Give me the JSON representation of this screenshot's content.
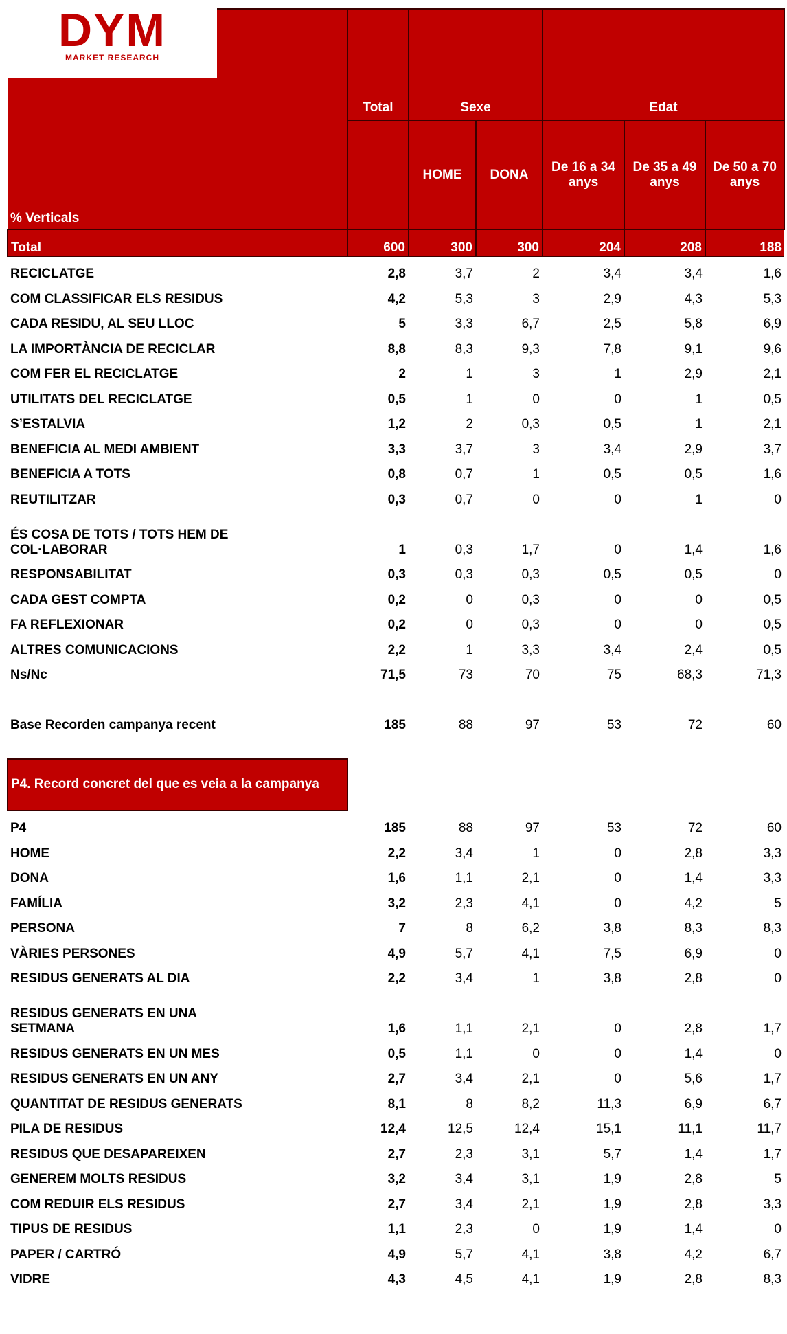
{
  "header": {
    "logo": "DYM",
    "logo_sub": "MARKET RESEARCH",
    "groups": [
      "Total",
      "Sexe",
      "Edat"
    ],
    "subheader_label": "% Verticals",
    "columns": [
      "HOME",
      "DONA",
      "De 16 a 34 anys",
      "De 35 a 49 anys",
      "De 50 a 70 anys"
    ]
  },
  "table": {
    "total_row": [
      "Total",
      "600",
      "300",
      "300",
      "204",
      "208",
      "188"
    ],
    "rows": [
      [
        "RECICLATGE",
        "2,8",
        "3,7",
        "2",
        "3,4",
        "3,4",
        "1,6"
      ],
      [
        "COM CLASSIFICAR ELS RESIDUS",
        "4,2",
        "5,3",
        "3",
        "2,9",
        "4,3",
        "5,3"
      ],
      [
        "CADA RESIDU, AL SEU LLOC",
        "5",
        "3,3",
        "6,7",
        "2,5",
        "5,8",
        "6,9"
      ],
      [
        "LA IMPORTÀNCIA DE RECICLAR",
        "8,8",
        "8,3",
        "9,3",
        "7,8",
        "9,1",
        "9,6"
      ],
      [
        "COM FER EL RECICLATGE",
        "2",
        "1",
        "3",
        "1",
        "2,9",
        "2,1"
      ],
      [
        "UTILITATS DEL RECICLATGE",
        "0,5",
        "1",
        "0",
        "0",
        "1",
        "0,5"
      ],
      [
        "S’ESTALVIA",
        "1,2",
        "2",
        "0,3",
        "0,5",
        "1",
        "2,1"
      ],
      [
        "BENEFICIA AL MEDI AMBIENT",
        "3,3",
        "3,7",
        "3",
        "3,4",
        "2,9",
        "3,7"
      ],
      [
        "BENEFICIA A TOTS",
        "0,8",
        "0,7",
        "1",
        "0,5",
        "0,5",
        "1,6"
      ],
      [
        "REUTILITZAR",
        "0,3",
        "0,7",
        "0",
        "0",
        "1",
        "0"
      ],
      [
        "ÉS COSA DE TOTS / TOTS HEM DE COL·LABORAR",
        "1",
        "0,3",
        "1,7",
        "0",
        "1,4",
        "1,6"
      ],
      [
        "RESPONSABILITAT",
        "0,3",
        "0,3",
        "0,3",
        "0,5",
        "0,5",
        "0"
      ],
      [
        "CADA GEST COMPTA",
        "0,2",
        "0",
        "0,3",
        "0",
        "0",
        "0,5"
      ],
      [
        "FA REFLEXIONAR",
        "0,2",
        "0",
        "0,3",
        "0",
        "0",
        "0,5"
      ],
      [
        "ALTRES COMUNICACIONS",
        "2,2",
        "1",
        "3,3",
        "3,4",
        "2,4",
        "0,5"
      ],
      [
        "Ns/Nc",
        "71,5",
        "73",
        "70",
        "75",
        "68,3",
        "71,3"
      ]
    ],
    "base_row": [
      "Base Recorden campanya recent",
      "185",
      "88",
      "97",
      "53",
      "72",
      "60"
    ]
  },
  "section2": {
    "title": "P4. Record concret del que es veia a la campanya",
    "rows": [
      [
        "P4",
        "185",
        "88",
        "97",
        "53",
        "72",
        "60"
      ],
      [
        "HOME",
        "2,2",
        "3,4",
        "1",
        "0",
        "2,8",
        "3,3"
      ],
      [
        "DONA",
        "1,6",
        "1,1",
        "2,1",
        "0",
        "1,4",
        "3,3"
      ],
      [
        "FAMÍLIA",
        "3,2",
        "2,3",
        "4,1",
        "0",
        "4,2",
        "5"
      ],
      [
        "PERSONA",
        "7",
        "8",
        "6,2",
        "3,8",
        "8,3",
        "8,3"
      ],
      [
        "VÀRIES PERSONES",
        "4,9",
        "5,7",
        "4,1",
        "7,5",
        "6,9",
        "0"
      ],
      [
        "RESIDUS GENERATS AL DIA",
        "2,2",
        "3,4",
        "1",
        "3,8",
        "2,8",
        "0"
      ],
      [
        "RESIDUS GENERATS EN UNA SETMANA",
        "1,6",
        "1,1",
        "2,1",
        "0",
        "2,8",
        "1,7"
      ],
      [
        "RESIDUS GENERATS EN UN MES",
        "0,5",
        "1,1",
        "0",
        "0",
        "1,4",
        "0"
      ],
      [
        "RESIDUS GENERATS EN UN ANY",
        "2,7",
        "3,4",
        "2,1",
        "0",
        "5,6",
        "1,7"
      ],
      [
        "QUANTITAT DE RESIDUS GENERATS",
        "8,1",
        "8",
        "8,2",
        "11,3",
        "6,9",
        "6,7"
      ],
      [
        "PILA DE RESIDUS",
        "12,4",
        "12,5",
        "12,4",
        "15,1",
        "11,1",
        "11,7"
      ],
      [
        "RESIDUS QUE DESAPAREIXEN",
        "2,7",
        "2,3",
        "3,1",
        "5,7",
        "1,4",
        "1,7"
      ],
      [
        "GENEREM MOLTS RESIDUS",
        "3,2",
        "3,4",
        "3,1",
        "1,9",
        "2,8",
        "5"
      ],
      [
        "COM REDUIR ELS RESIDUS",
        "2,7",
        "3,4",
        "2,1",
        "1,9",
        "2,8",
        "3,3"
      ],
      [
        "TIPUS DE RESIDUS",
        "1,1",
        "2,3",
        "0",
        "1,9",
        "1,4",
        "0"
      ],
      [
        "PAPER / CARTRÓ",
        "4,9",
        "5,7",
        "4,1",
        "3,8",
        "4,2",
        "6,7"
      ],
      [
        "VIDRE",
        "4,3",
        "4,5",
        "4,1",
        "1,9",
        "2,8",
        "8,3"
      ]
    ]
  }
}
